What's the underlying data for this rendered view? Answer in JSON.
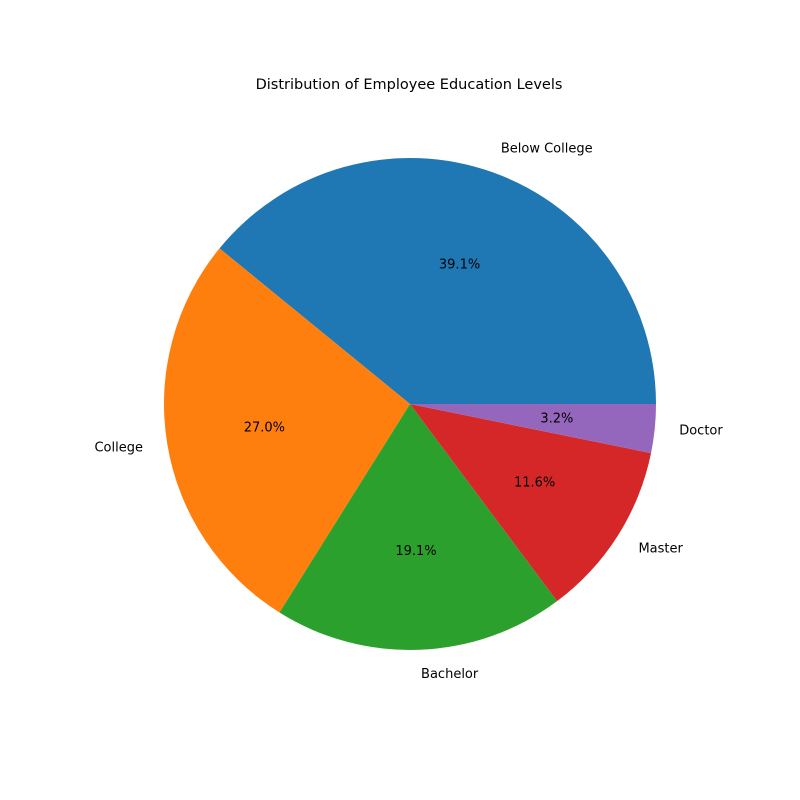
{
  "chart_data": {
    "type": "pie",
    "title": "Distribution of Employee Education Levels",
    "categories": [
      "Below College",
      "College",
      "Bachelor",
      "Master",
      "Doctor"
    ],
    "values": [
      39.1,
      27.0,
      19.1,
      11.6,
      3.2
    ],
    "value_labels": [
      "39.1%",
      "27.0%",
      "19.1%",
      "11.6%",
      "3.2%"
    ],
    "colors": [
      "#1f77b4",
      "#ff7f0e",
      "#2ca02c",
      "#d62728",
      "#9467bd"
    ],
    "start_angle_deg": 0,
    "direction": "counterclockwise",
    "legend": "none"
  }
}
